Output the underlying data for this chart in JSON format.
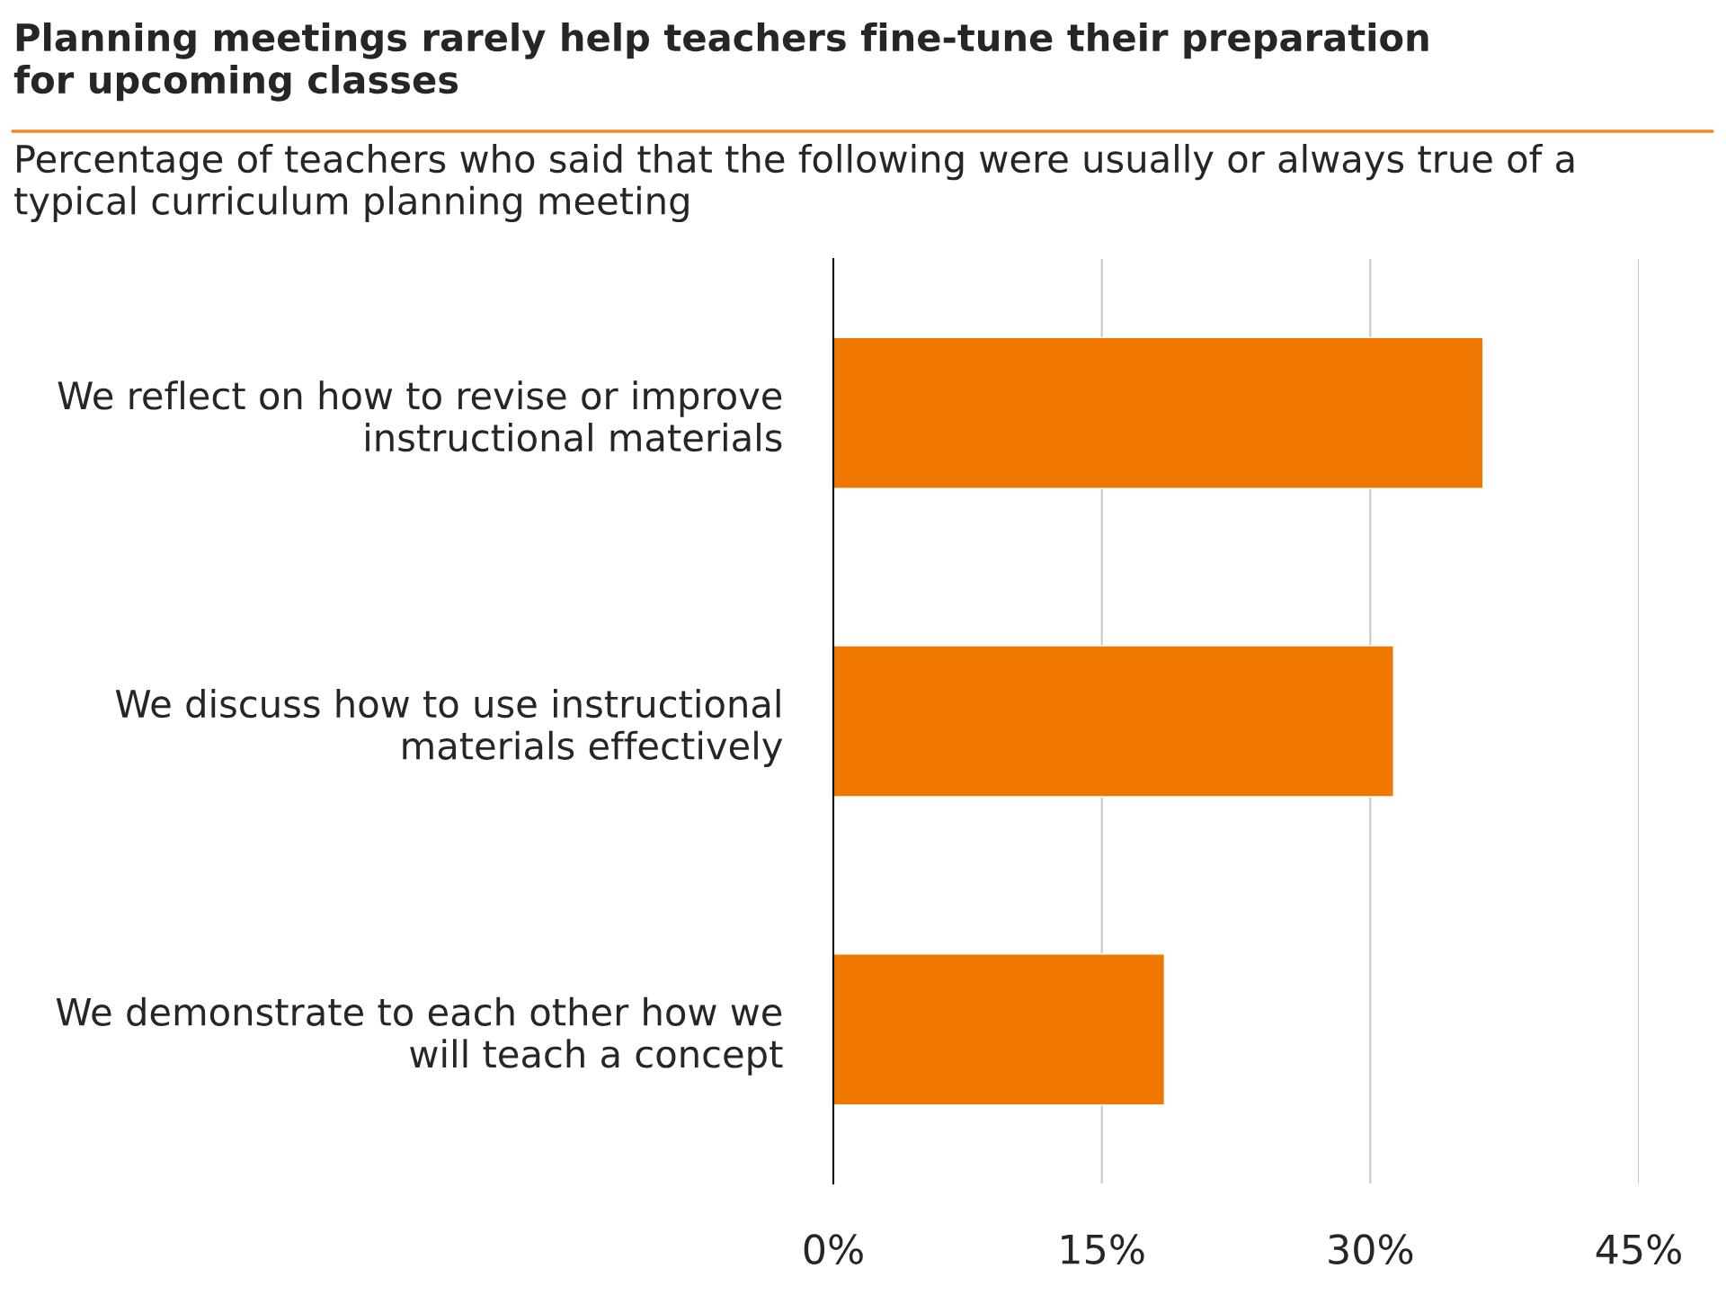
{
  "chart_data": {
    "type": "bar",
    "orientation": "horizontal",
    "title": "Planning meetings rarely help teachers fine-tune their preparation\nfor upcoming classes",
    "subtitle": "Percentage of teachers who said that the following were usually or always true of a\ntypical curriculum planning meeting",
    "categories": [
      "We reflect on how to revise or improve\ninstructional materials",
      "We discuss how to use instructional\nmaterials effectively",
      "We demonstrate to each other how we\nwill teach a concept"
    ],
    "values": [
      36.3,
      31.3,
      18.5
    ],
    "color": "#f07800",
    "xlim": [
      0,
      45
    ],
    "xticks": [
      {
        "value": 0,
        "label": "0%"
      },
      {
        "value": 15,
        "label": "15%"
      },
      {
        "value": 30,
        "label": "30%"
      },
      {
        "value": 45,
        "label": "45%"
      }
    ],
    "grid": "x",
    "legend": false
  }
}
